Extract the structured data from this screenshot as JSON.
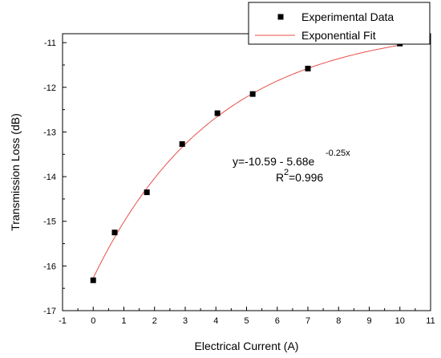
{
  "chart_data": {
    "type": "scatter",
    "xlabel": "Electrical Current (A)",
    "ylabel": "Transmission Loss (dB)",
    "xlim": [
      -1,
      11
    ],
    "ylim": [
      -17,
      -10.8
    ],
    "xticks": [
      "-1",
      "0",
      "1",
      "2",
      "3",
      "4",
      "5",
      "6",
      "7",
      "8",
      "9",
      "10",
      "11"
    ],
    "yticks": [
      "-17",
      "-16",
      "-15",
      "-14",
      "-13",
      "-12",
      "-11"
    ],
    "grid": false,
    "legend_position": "top-right",
    "series": [
      {
        "name": "Experimental Data",
        "kind": "scatter",
        "marker": "square",
        "color": "#000000",
        "x": [
          0,
          0.7,
          1.75,
          2.9,
          4.05,
          5.2,
          7.0,
          10.0
        ],
        "y": [
          -16.32,
          -15.25,
          -14.35,
          -13.27,
          -12.58,
          -12.15,
          -11.58,
          -11.02
        ]
      },
      {
        "name": "Exponential Fit",
        "kind": "line",
        "color": "#e8504a",
        "equation": {
          "a": -10.59,
          "b": -5.68,
          "c": -0.25
        },
        "x_range": [
          0,
          10
        ]
      }
    ],
    "annotations": {
      "equation_main": "y=-10.59 - 5.68e",
      "equation_exponent": "-0.25x",
      "r2_prefix": "R",
      "r2_sup": "2",
      "r2_value": "=0.996"
    }
  }
}
